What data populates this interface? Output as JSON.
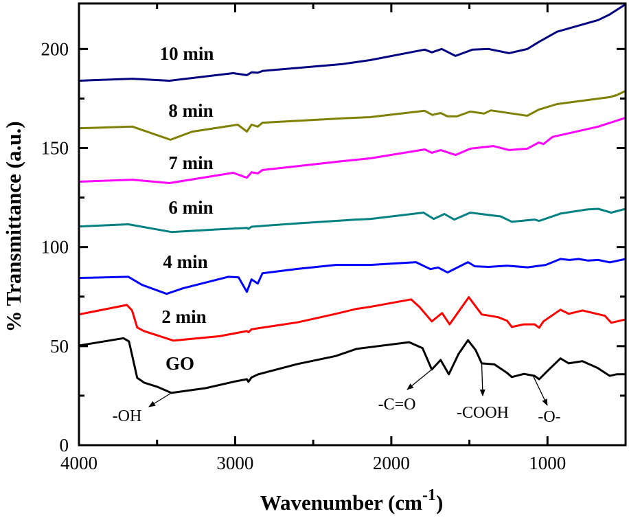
{
  "chart_data": {
    "type": "line",
    "title": "",
    "xlabel": "Wavenumber (cm",
    "xlabel_sup": "-1",
    "xlabel_close": ")",
    "ylabel": "% Transmittance (a.u.)",
    "xlim": [
      4000,
      500
    ],
    "ylim": [
      0,
      223
    ],
    "x_reversed": true,
    "grid": false,
    "legend": "none (labels placed next to each curve)",
    "x_ticks": [
      4000,
      3000,
      2000,
      1000
    ],
    "x_tick_labels": [
      "4000",
      "3000",
      "2000",
      "1000"
    ],
    "y_ticks": [
      0,
      50,
      100,
      150,
      200
    ],
    "y_tick_labels": [
      "0",
      "50",
      "100",
      "150",
      "200"
    ],
    "series": [
      {
        "name": "GO",
        "color": "#000000",
        "x": [
          4000,
          3715,
          3680,
          3627,
          3583,
          3500,
          3408,
          3189,
          3000,
          2925,
          2915,
          2895,
          2851,
          2600,
          2355,
          2224,
          2136,
          1886,
          1800,
          1741,
          1684,
          1632,
          1570,
          1509,
          1460,
          1421,
          1340,
          1259,
          1228,
          1150,
          1083,
          1053,
          1000,
          917,
          864,
          776,
          680,
          601,
          557,
          500
        ],
        "y": [
          50.3,
          54,
          52.4,
          34,
          31.6,
          29.5,
          26.4,
          28.8,
          32.2,
          33.3,
          32,
          34.2,
          35.8,
          41,
          45,
          48.6,
          49.5,
          52,
          49,
          38.2,
          43,
          35.8,
          46,
          53,
          48,
          41.3,
          40.8,
          36.5,
          34.4,
          36,
          35,
          33.3,
          37.5,
          43.8,
          41.3,
          42.4,
          39,
          35,
          35.8,
          35.8
        ]
      },
      {
        "name": "2 min",
        "color": "#ff0000",
        "x": [
          4000,
          3693,
          3660,
          3627,
          3583,
          3395,
          3100,
          2925,
          2915,
          2895,
          2855,
          2600,
          2355,
          2224,
          2136,
          1873,
          1820,
          1741,
          1675,
          1627,
          1504,
          1421,
          1316,
          1259,
          1228,
          1150,
          1083,
          1053,
          1026,
          917,
          864,
          776,
          632,
          592,
          500
        ],
        "y": [
          66,
          70.8,
          68,
          59.4,
          57.6,
          52.8,
          55,
          57.6,
          57,
          58.5,
          59,
          62,
          66.3,
          68.8,
          69.8,
          73.6,
          69.8,
          62.5,
          66.7,
          61,
          74.7,
          66,
          64.6,
          62.8,
          59.7,
          61,
          61,
          59.3,
          62.5,
          68.4,
          66.3,
          68,
          65.3,
          61.8,
          63.5
        ]
      },
      {
        "name": "4 min",
        "color": "#0000ff",
        "x": [
          4000,
          3684,
          3596,
          3439,
          3333,
          3044,
          2978,
          2925,
          2895,
          2855,
          2825,
          2600,
          2355,
          2224,
          2136,
          1842,
          1750,
          1700,
          1640,
          1509,
          1465,
          1377,
          1259,
          1127,
          1011,
          917,
          860,
          800,
          740,
          675,
          601,
          500
        ],
        "y": [
          84.4,
          85,
          80.9,
          76.4,
          79.2,
          85,
          84.7,
          77.4,
          83.7,
          81.6,
          86.8,
          89,
          91,
          91,
          91,
          92.4,
          88.9,
          89.7,
          87.2,
          92.4,
          90.3,
          90,
          90.6,
          89.8,
          91,
          94,
          93.5,
          94,
          93.2,
          93.5,
          92.3,
          94
        ]
      },
      {
        "name": "6 min",
        "color": "#008080",
        "x": [
          4000,
          3684,
          3408,
          3100,
          2925,
          2915,
          2895,
          2600,
          2224,
          2136,
          1794,
          1728,
          1660,
          1597,
          1494,
          1377,
          1300,
          1228,
          1083,
          1053,
          917,
          746,
          675,
          592,
          500
        ],
        "y": [
          110.4,
          111.5,
          107.6,
          109,
          109.7,
          109.2,
          110.3,
          112,
          113.9,
          114.2,
          117.4,
          114.2,
          116.7,
          113.9,
          117.4,
          116.2,
          115.5,
          112.8,
          113.9,
          113.2,
          116.9,
          119,
          119.3,
          117.4,
          119.3
        ]
      },
      {
        "name": "7 min",
        "color": "#ff00ff",
        "x": [
          4000,
          3658,
          3421,
          3013,
          2925,
          2895,
          2855,
          2825,
          2311,
          2136,
          1786,
          1741,
          1684,
          1589,
          1494,
          1348,
          1246,
          1129,
          1056,
          1026,
          968,
          675,
          500
        ],
        "y": [
          133,
          134,
          132.3,
          137.5,
          135,
          137.8,
          137.2,
          138.9,
          143.4,
          144.8,
          149.3,
          147.6,
          149,
          146.5,
          149.7,
          151,
          149,
          149.7,
          152.8,
          152,
          155.6,
          160.8,
          165.3
        ]
      },
      {
        "name": "8 min",
        "color": "#808000",
        "x": [
          4000,
          3658,
          3414,
          3275,
          2983,
          2925,
          2895,
          2855,
          2825,
          2311,
          2136,
          1786,
          1737,
          1684,
          1640,
          1580,
          1494,
          1406,
          1363,
          1129,
          1056,
          939,
          602,
          557,
          500
        ],
        "y": [
          160,
          160.8,
          154.2,
          158.3,
          161.8,
          158.3,
          161.8,
          160.8,
          162.8,
          165,
          165.6,
          168.8,
          166.7,
          167.7,
          166,
          166,
          168.4,
          167.4,
          169,
          166.3,
          169.4,
          172.2,
          175.7,
          176.7,
          178.8
        ]
      },
      {
        "name": "10 min",
        "color": "#000080",
        "x": [
          4000,
          3658,
          3421,
          3013,
          2925,
          2895,
          2855,
          2825,
          2311,
          2136,
          1786,
          1741,
          1677,
          1589,
          1480,
          1377,
          1246,
          1129,
          1056,
          939,
          675,
          602,
          500
        ],
        "y": [
          184,
          185,
          184,
          187.8,
          186.8,
          188.2,
          188,
          188.9,
          192.4,
          194.4,
          199.7,
          198.3,
          200,
          196.5,
          199.7,
          200,
          197.9,
          200,
          203.5,
          208.7,
          214.6,
          217.4,
          222.6
        ]
      }
    ],
    "series_labels": [
      "GO",
      "2 min",
      "4 min",
      "6 min",
      "7 min",
      "8 min",
      "10 min"
    ],
    "annotations": [
      {
        "text": "-OH",
        "points_to": [
          3408,
          26.4
        ]
      },
      {
        "text": "-C=O",
        "points_to": [
          1741,
          38.2
        ]
      },
      {
        "text": "-COOH",
        "points_to": [
          1421,
          41.3
        ]
      },
      {
        "text": "-O-",
        "points_to": [
          1092,
          35
        ]
      }
    ]
  }
}
